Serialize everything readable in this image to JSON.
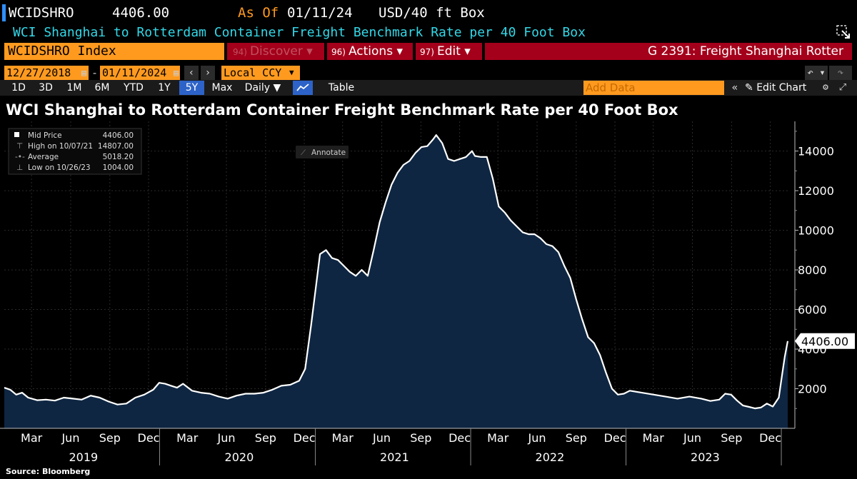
{
  "ticker": {
    "code": "WCIDSHRO",
    "price": "4406.00",
    "as_of_label": "As Of",
    "as_of_date": "01/11/24",
    "unit": "USD/40 ft Box"
  },
  "description": "WCI Shanghai to Rotterdam Container Freight Benchmark Rate per 40 Foot Box",
  "command": {
    "security": "WCIDSHRO Index",
    "discover": {
      "num": "94)",
      "label": "Discover ▾"
    },
    "actions": {
      "num": "96)",
      "label": "Actions ▾"
    },
    "edit": {
      "num": "97)",
      "label": "Edit ▾"
    },
    "function": "G 2391: Freight Shanghai Rotter"
  },
  "dates": {
    "start": "12/27/2018",
    "end": "01/11/2024",
    "currency": "Local CCY"
  },
  "periods": [
    "1D",
    "3D",
    "1M",
    "6M",
    "YTD",
    "1Y",
    "5Y",
    "Max"
  ],
  "active_period": "5Y",
  "toolbar": {
    "frequency": "Daily ▼",
    "table": "Table",
    "add_data_placeholder": "Add Data",
    "edit_chart": "Edit Chart"
  },
  "colors": {
    "accent_orange": "#ff9a1f",
    "menu_red": "#a4001b",
    "title_cyan": "#33d8e8",
    "area_fill": "#0e2642",
    "line": "#ffffff"
  },
  "legend": {
    "rows": [
      {
        "label": "Mid Price",
        "value": "4406.00"
      },
      {
        "label": "High on 10/07/21",
        "value": "14807.00"
      },
      {
        "label": "Average",
        "value": "5018.20"
      },
      {
        "label": "Low on 10/26/23",
        "value": "1004.00"
      }
    ]
  },
  "annotate_label": "Annotate",
  "last_price_tag": "4406.00",
  "source": "Source: Bloomberg",
  "chart_data": {
    "type": "area",
    "title": "WCI Shanghai to Rotterdam Container Freight Benchmark Rate per 40 Foot Box",
    "y_ticks": [
      2000,
      4000,
      6000,
      8000,
      10000,
      12000,
      14000
    ],
    "ylim": [
      0,
      15500
    ],
    "x_range": [
      "2018-12-27",
      "2024-01-11"
    ],
    "month_ticks": [
      {
        "label": "Mar",
        "date": "2019-03-01"
      },
      {
        "label": "Jun",
        "date": "2019-06-01"
      },
      {
        "label": "Sep",
        "date": "2019-09-01"
      },
      {
        "label": "Dec",
        "date": "2019-12-01"
      },
      {
        "label": "Mar",
        "date": "2020-03-01"
      },
      {
        "label": "Jun",
        "date": "2020-06-01"
      },
      {
        "label": "Sep",
        "date": "2020-09-01"
      },
      {
        "label": "Dec",
        "date": "2020-12-01"
      },
      {
        "label": "Mar",
        "date": "2021-03-01"
      },
      {
        "label": "Jun",
        "date": "2021-06-01"
      },
      {
        "label": "Sep",
        "date": "2021-09-01"
      },
      {
        "label": "Dec",
        "date": "2021-12-01"
      },
      {
        "label": "Mar",
        "date": "2022-03-01"
      },
      {
        "label": "Jun",
        "date": "2022-06-01"
      },
      {
        "label": "Sep",
        "date": "2022-09-01"
      },
      {
        "label": "Dec",
        "date": "2022-12-01"
      },
      {
        "label": "Mar",
        "date": "2023-03-01"
      },
      {
        "label": "Jun",
        "date": "2023-06-01"
      },
      {
        "label": "Sep",
        "date": "2023-09-01"
      },
      {
        "label": "Dec",
        "date": "2023-12-01"
      }
    ],
    "year_labels": [
      {
        "label": "2019",
        "date": "2019-07-01"
      },
      {
        "label": "2020",
        "date": "2020-07-01"
      },
      {
        "label": "2021",
        "date": "2021-07-01"
      },
      {
        "label": "2022",
        "date": "2022-07-01"
      },
      {
        "label": "2023",
        "date": "2023-07-01"
      }
    ],
    "year_separators": [
      "2020-01-01",
      "2021-01-01",
      "2022-01-01",
      "2023-01-01",
      "2024-01-01"
    ],
    "series": [
      {
        "points": [
          [
            "2018-12-27",
            2050
          ],
          [
            "2019-01-10",
            1950
          ],
          [
            "2019-01-24",
            1700
          ],
          [
            "2019-02-07",
            1800
          ],
          [
            "2019-02-21",
            1550
          ],
          [
            "2019-03-14",
            1420
          ],
          [
            "2019-04-04",
            1450
          ],
          [
            "2019-04-25",
            1400
          ],
          [
            "2019-05-16",
            1550
          ],
          [
            "2019-06-06",
            1500
          ],
          [
            "2019-06-27",
            1450
          ],
          [
            "2019-07-18",
            1650
          ],
          [
            "2019-08-08",
            1550
          ],
          [
            "2019-08-29",
            1350
          ],
          [
            "2019-09-19",
            1200
          ],
          [
            "2019-10-10",
            1250
          ],
          [
            "2019-10-31",
            1550
          ],
          [
            "2019-11-21",
            1700
          ],
          [
            "2019-12-12",
            1950
          ],
          [
            "2019-12-26",
            2300
          ],
          [
            "2020-01-09",
            2250
          ],
          [
            "2020-01-23",
            2150
          ],
          [
            "2020-02-06",
            2050
          ],
          [
            "2020-02-20",
            2250
          ],
          [
            "2020-03-12",
            1900
          ],
          [
            "2020-04-02",
            1800
          ],
          [
            "2020-04-23",
            1750
          ],
          [
            "2020-05-14",
            1600
          ],
          [
            "2020-06-04",
            1500
          ],
          [
            "2020-06-25",
            1650
          ],
          [
            "2020-07-16",
            1750
          ],
          [
            "2020-08-06",
            1750
          ],
          [
            "2020-08-27",
            1800
          ],
          [
            "2020-09-17",
            1950
          ],
          [
            "2020-10-08",
            2150
          ],
          [
            "2020-10-29",
            2200
          ],
          [
            "2020-11-19",
            2400
          ],
          [
            "2020-12-03",
            3000
          ],
          [
            "2020-12-17",
            5200
          ],
          [
            "2021-01-07",
            8800
          ],
          [
            "2021-01-21",
            9000
          ],
          [
            "2021-02-04",
            8600
          ],
          [
            "2021-02-18",
            8500
          ],
          [
            "2021-03-04",
            8200
          ],
          [
            "2021-03-18",
            7900
          ],
          [
            "2021-04-01",
            7700
          ],
          [
            "2021-04-15",
            8000
          ],
          [
            "2021-04-29",
            7700
          ],
          [
            "2021-05-13",
            9000
          ],
          [
            "2021-05-27",
            10400
          ],
          [
            "2021-06-10",
            11400
          ],
          [
            "2021-06-24",
            12300
          ],
          [
            "2021-07-08",
            12900
          ],
          [
            "2021-07-22",
            13300
          ],
          [
            "2021-08-05",
            13500
          ],
          [
            "2021-08-19",
            13900
          ],
          [
            "2021-09-02",
            14200
          ],
          [
            "2021-09-16",
            14250
          ],
          [
            "2021-09-30",
            14600
          ],
          [
            "2021-10-07",
            14807
          ],
          [
            "2021-10-21",
            14400
          ],
          [
            "2021-11-04",
            13600
          ],
          [
            "2021-11-18",
            13500
          ],
          [
            "2021-12-02",
            13600
          ],
          [
            "2021-12-16",
            13700
          ],
          [
            "2021-12-30",
            14000
          ],
          [
            "2022-01-06",
            13750
          ],
          [
            "2022-01-20",
            13700
          ],
          [
            "2022-02-03",
            13700
          ],
          [
            "2022-02-17",
            12600
          ],
          [
            "2022-03-03",
            11200
          ],
          [
            "2022-03-17",
            10900
          ],
          [
            "2022-03-31",
            10500
          ],
          [
            "2022-04-14",
            10200
          ],
          [
            "2022-04-28",
            9900
          ],
          [
            "2022-05-12",
            9800
          ],
          [
            "2022-05-26",
            9800
          ],
          [
            "2022-06-09",
            9600
          ],
          [
            "2022-06-23",
            9300
          ],
          [
            "2022-07-07",
            9200
          ],
          [
            "2022-07-21",
            8900
          ],
          [
            "2022-08-04",
            8200
          ],
          [
            "2022-08-18",
            7600
          ],
          [
            "2022-09-01",
            6500
          ],
          [
            "2022-09-15",
            5500
          ],
          [
            "2022-09-29",
            4600
          ],
          [
            "2022-10-13",
            4300
          ],
          [
            "2022-10-27",
            3700
          ],
          [
            "2022-11-10",
            2800
          ],
          [
            "2022-11-24",
            2000
          ],
          [
            "2022-12-08",
            1700
          ],
          [
            "2022-12-22",
            1750
          ],
          [
            "2023-01-05",
            1900
          ],
          [
            "2023-02-02",
            1800
          ],
          [
            "2023-03-02",
            1700
          ],
          [
            "2023-03-30",
            1600
          ],
          [
            "2023-04-27",
            1500
          ],
          [
            "2023-05-25",
            1600
          ],
          [
            "2023-06-22",
            1500
          ],
          [
            "2023-07-13",
            1380
          ],
          [
            "2023-08-03",
            1450
          ],
          [
            "2023-08-17",
            1750
          ],
          [
            "2023-08-31",
            1700
          ],
          [
            "2023-09-14",
            1400
          ],
          [
            "2023-09-28",
            1150
          ],
          [
            "2023-10-12",
            1080
          ],
          [
            "2023-10-26",
            1004
          ],
          [
            "2023-11-09",
            1050
          ],
          [
            "2023-11-23",
            1250
          ],
          [
            "2023-12-07",
            1100
          ],
          [
            "2023-12-21",
            1550
          ],
          [
            "2023-12-28",
            2600
          ],
          [
            "2024-01-04",
            3600
          ],
          [
            "2024-01-11",
            4406
          ]
        ]
      }
    ]
  }
}
